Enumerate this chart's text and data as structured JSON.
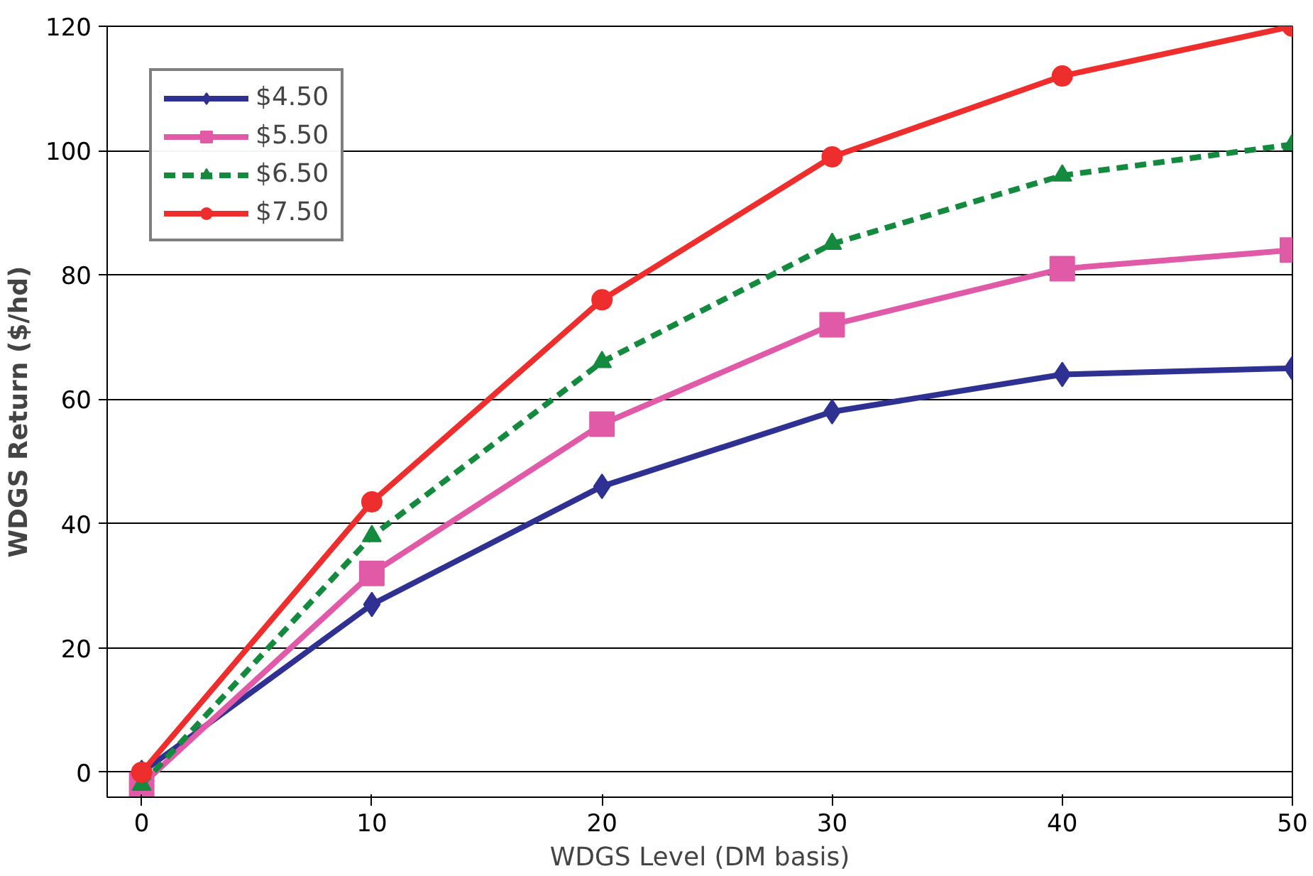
{
  "chart_data": {
    "type": "line",
    "xlabel": "WDGS Level (DM basis)",
    "ylabel": "WDGS Return ($/hd)",
    "x": [
      0,
      10,
      20,
      30,
      40,
      50
    ],
    "xlim": [
      -1.5,
      50
    ],
    "xticks": [
      0,
      10,
      20,
      30,
      40,
      50
    ],
    "ylim": [
      -4,
      120
    ],
    "yticks": [
      0,
      20,
      40,
      60,
      80,
      100,
      120
    ],
    "grid": "y",
    "legend": "top left",
    "series": [
      {
        "name": "$4.50",
        "color": "#2e3192",
        "marker": "diamond",
        "line_style": "solid",
        "values": [
          0,
          27,
          46,
          58,
          64,
          65
        ]
      },
      {
        "name": "$5.50",
        "color": "#e05aa8",
        "marker": "square",
        "line_style": "solid",
        "values": [
          -2,
          32,
          56,
          72,
          81,
          84
        ]
      },
      {
        "name": "$6.50",
        "color": "#138a3e",
        "marker": "triangle",
        "line_style": "dashed",
        "values": [
          -2,
          38,
          66,
          85,
          96,
          101
        ]
      },
      {
        "name": "$7.50",
        "color": "#ee2d2d",
        "marker": "circle",
        "line_style": "solid",
        "values": [
          0,
          43.5,
          76,
          99,
          112,
          120
        ]
      }
    ]
  }
}
